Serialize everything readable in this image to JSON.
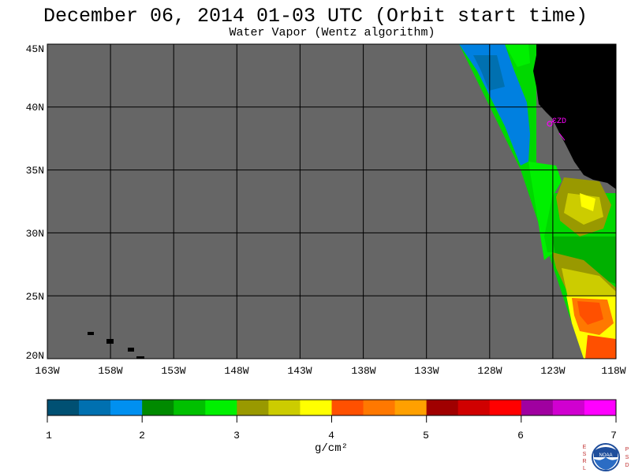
{
  "header": {
    "title": "December 06, 2014  01-03 UTC  (Orbit start time)",
    "subtitle": "Water Vapor (Wentz algorithm)"
  },
  "map": {
    "lat_ticks": [
      "45N",
      "40N",
      "35N",
      "30N",
      "25N",
      "20N"
    ],
    "lon_ticks": [
      "163W",
      "158W",
      "153W",
      "148W",
      "143W",
      "138W",
      "133W",
      "128W",
      "123W",
      "118W"
    ],
    "station_label": "CZD",
    "background_no_data_color": "#666666",
    "land_color": "#000000"
  },
  "colorbar": {
    "tick_labels": [
      "1",
      "2",
      "3",
      "4",
      "5",
      "6",
      "7"
    ],
    "units": "g/cm²",
    "colors": [
      "#005073",
      "#0070b0",
      "#0090f0",
      "#008a00",
      "#00c000",
      "#00f000",
      "#999900",
      "#cccc00",
      "#ffff00",
      "#ff5000",
      "#ff7800",
      "#ffa000",
      "#a00000",
      "#d00000",
      "#ff0000",
      "#a000a0",
      "#d000d0",
      "#ff00ff"
    ]
  },
  "logo": {
    "left_letters": [
      "E",
      "S",
      "R",
      "L"
    ],
    "right_letters": [
      "P",
      "S",
      "D"
    ],
    "center_text": "NOAA"
  }
}
